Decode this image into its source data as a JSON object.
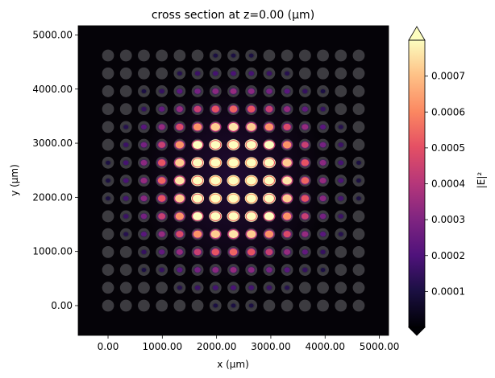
{
  "chart_data": {
    "type": "heatmap",
    "title": "cross section at z=0.00 (µm)",
    "xlabel": "x (µm)",
    "ylabel": "y (µm)",
    "xlim": [
      -550,
      5170
    ],
    "ylim": [
      -550,
      5170
    ],
    "xticks": [
      0,
      1000,
      2000,
      3000,
      4000,
      5000
    ],
    "xtick_labels": [
      "0.00",
      "1000.00",
      "2000.00",
      "3000.00",
      "4000.00",
      "5000.00"
    ],
    "yticks": [
      0,
      1000,
      2000,
      3000,
      4000,
      5000
    ],
    "ytick_labels": [
      "0.00",
      "1000.00",
      "2000.00",
      "3000.00",
      "4000.00",
      "5000.00"
    ],
    "grid": false,
    "colormap": "magma",
    "background_color": "#050308",
    "structure_color": "#3c3b40",
    "colorbar": {
      "label": "|E|²",
      "range": [
        0,
        0.0008
      ],
      "extend": "both",
      "ticks": [
        0.0001,
        0.0002,
        0.0003,
        0.0004,
        0.0005,
        0.0006,
        0.0007
      ],
      "tick_labels": [
        "0.0001",
        "0.0002",
        "0.0003",
        "0.0004",
        "0.0005",
        "0.0006",
        "0.0007"
      ]
    },
    "cell_x": [
      0,
      330,
      660,
      990,
      1320,
      1650,
      1980,
      2310,
      2640,
      2970,
      3300,
      3630,
      3960,
      4290,
      4620
    ],
    "cell_y": [
      4620,
      4290,
      3960,
      3630,
      3300,
      2970,
      2640,
      2310,
      1980,
      1650,
      1320,
      990,
      660,
      330,
      0
    ],
    "values": [
      [
        1e-05,
        2e-05,
        3e-05,
        5e-05,
        6e-05,
        8e-05,
        0.0001,
        0.0001,
        0.0001,
        8e-05,
        6e-05,
        5e-05,
        3e-05,
        2e-05,
        1e-05
      ],
      [
        2e-05,
        3e-05,
        6e-05,
        9e-05,
        0.00012,
        0.00016,
        0.00018,
        0.00019,
        0.00018,
        0.00016,
        0.00012,
        9e-05,
        6e-05,
        3e-05,
        2e-05
      ],
      [
        3e-05,
        6e-05,
        0.0001,
        0.00015,
        0.00022,
        0.00028,
        0.00032,
        0.00034,
        0.00032,
        0.00028,
        0.00022,
        0.00015,
        0.0001,
        6e-05,
        3e-05
      ],
      [
        5e-05,
        9e-05,
        0.00015,
        0.00024,
        0.00034,
        0.00044,
        0.00051,
        0.00054,
        0.00051,
        0.00044,
        0.00034,
        0.00024,
        0.00015,
        9e-05,
        5e-05
      ],
      [
        6e-05,
        0.00012,
        0.00022,
        0.00034,
        0.00048,
        0.00062,
        0.00072,
        0.00076,
        0.00072,
        0.00062,
        0.00048,
        0.00034,
        0.00022,
        0.00012,
        6e-05
      ],
      [
        8e-05,
        0.00016,
        0.00028,
        0.00044,
        0.00062,
        0.0008,
        0.00093,
        0.00098,
        0.00093,
        0.0008,
        0.00062,
        0.00044,
        0.00028,
        0.00016,
        8e-05
      ],
      [
        0.0001,
        0.00018,
        0.00032,
        0.00051,
        0.00072,
        0.00093,
        0.00108,
        0.00114,
        0.00108,
        0.00093,
        0.00072,
        0.00051,
        0.00032,
        0.00018,
        0.0001
      ],
      [
        0.0001,
        0.00019,
        0.00034,
        0.00054,
        0.00076,
        0.00098,
        0.00114,
        0.0012,
        0.00114,
        0.00098,
        0.00076,
        0.00054,
        0.00034,
        0.00019,
        0.0001
      ],
      [
        0.0001,
        0.00018,
        0.00032,
        0.00051,
        0.00072,
        0.00093,
        0.00108,
        0.00114,
        0.00108,
        0.00093,
        0.00072,
        0.00051,
        0.00032,
        0.00018,
        0.0001
      ],
      [
        8e-05,
        0.00016,
        0.00028,
        0.00044,
        0.00062,
        0.0008,
        0.00093,
        0.00098,
        0.00093,
        0.0008,
        0.00062,
        0.00044,
        0.00028,
        0.00016,
        8e-05
      ],
      [
        6e-05,
        0.00012,
        0.00022,
        0.00034,
        0.00048,
        0.00062,
        0.00072,
        0.00076,
        0.00072,
        0.00062,
        0.00048,
        0.00034,
        0.00022,
        0.00012,
        6e-05
      ],
      [
        5e-05,
        9e-05,
        0.00015,
        0.00024,
        0.00034,
        0.00044,
        0.00051,
        0.00054,
        0.00051,
        0.00044,
        0.00034,
        0.00024,
        0.00015,
        9e-05,
        5e-05
      ],
      [
        3e-05,
        6e-05,
        0.0001,
        0.00015,
        0.00022,
        0.00028,
        0.00032,
        0.00034,
        0.00032,
        0.00028,
        0.00022,
        0.00015,
        0.0001,
        6e-05,
        3e-05
      ],
      [
        2e-05,
        3e-05,
        6e-05,
        9e-05,
        0.00012,
        0.00016,
        0.00018,
        0.00019,
        0.00018,
        0.00016,
        0.00012,
        9e-05,
        6e-05,
        3e-05,
        2e-05
      ],
      [
        1e-05,
        2e-05,
        3e-05,
        5e-05,
        6e-05,
        8e-05,
        0.0001,
        0.0001,
        0.0001,
        8e-05,
        6e-05,
        5e-05,
        3e-05,
        2e-05,
        1e-05
      ]
    ]
  }
}
